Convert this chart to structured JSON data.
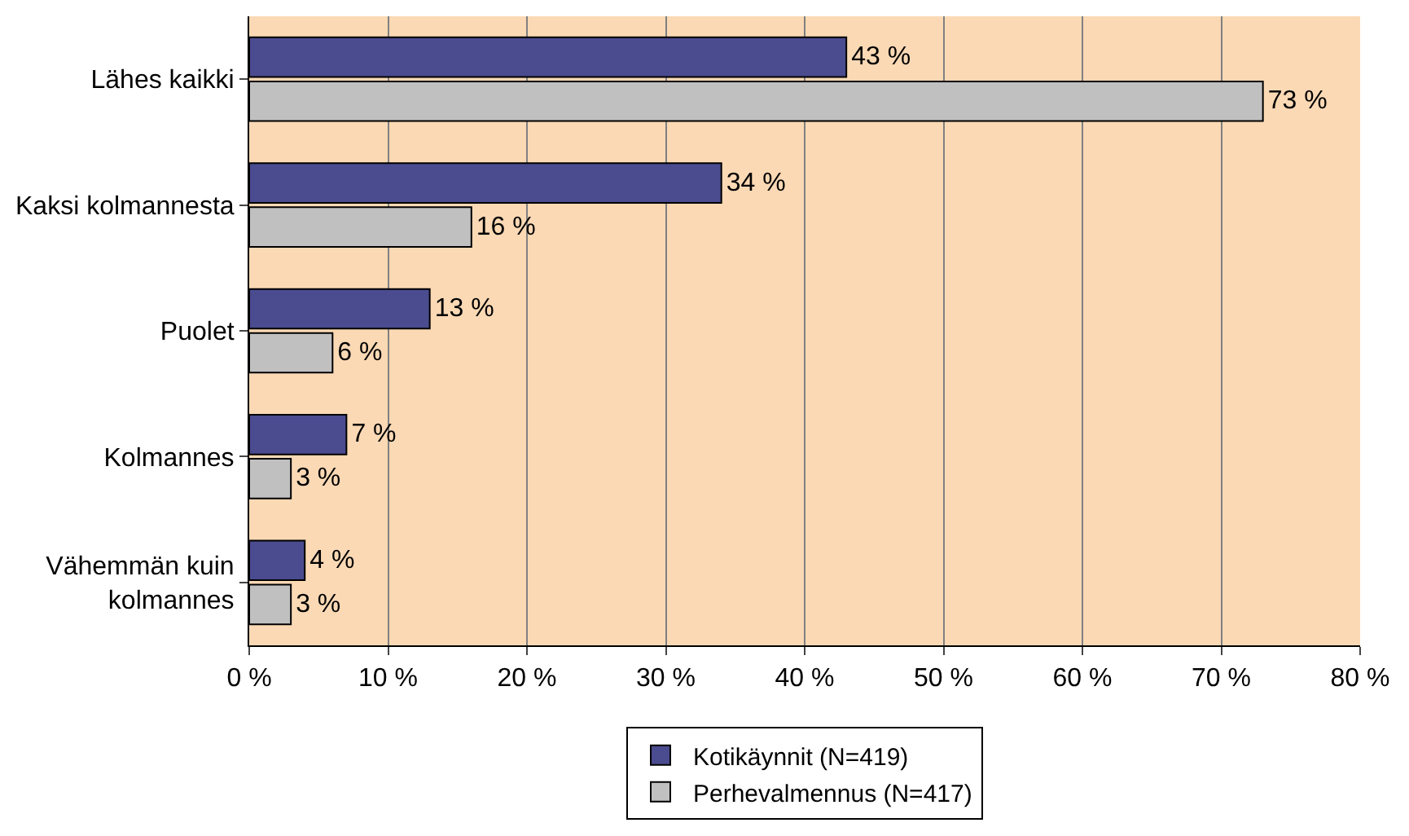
{
  "chart_data": {
    "type": "bar",
    "orientation": "horizontal",
    "categories": [
      "Lähes kaikki",
      "Kaksi kolmannesta",
      "Puolet",
      "Kolmannes",
      "Vähemmän kuin kolmannes"
    ],
    "series": [
      {
        "name": "Kotikäynnit (N=419)",
        "color": "#4b4b8f",
        "values": [
          43,
          34,
          13,
          7,
          4
        ],
        "value_labels": [
          "43 %",
          "34 %",
          "13 %",
          "7 %",
          "4 %"
        ]
      },
      {
        "name": "Perhevalmennus (N=417)",
        "color": "#c0c0c0",
        "values": [
          73,
          16,
          6,
          3,
          3
        ],
        "value_labels": [
          "73 %",
          "16 %",
          "6 %",
          "3 %",
          "3 %"
        ]
      }
    ],
    "xlim": [
      0,
      80
    ],
    "xticks": [
      {
        "value": 0,
        "label": "0 %"
      },
      {
        "value": 10,
        "label": "10 %"
      },
      {
        "value": 20,
        "label": "20 %"
      },
      {
        "value": 30,
        "label": "30 %"
      },
      {
        "value": 40,
        "label": "40 %"
      },
      {
        "value": 50,
        "label": "50 %"
      },
      {
        "value": 60,
        "label": "60 %"
      },
      {
        "value": 70,
        "label": "70 %"
      },
      {
        "value": 80,
        "label": "80 %"
      }
    ],
    "grid": "x",
    "legend": "bottom"
  }
}
